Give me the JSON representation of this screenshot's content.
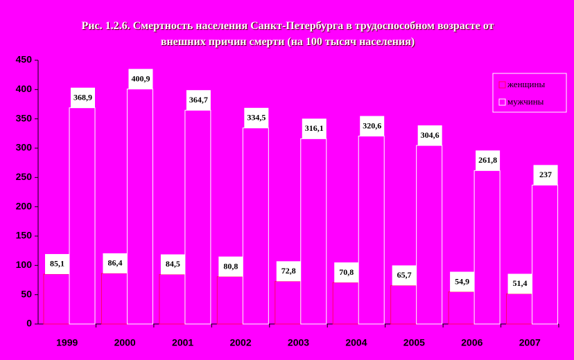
{
  "chart_data": {
    "type": "bar",
    "title": "Рис. 1.2.6. Смертность населения Санкт-Петербурга в трудоспособном возрасте от внешних причин смерти (на 100 тысяч населения)",
    "categories": [
      "1999",
      "2000",
      "2001",
      "2002",
      "2003",
      "2004",
      "2005",
      "2006",
      "2007"
    ],
    "series": [
      {
        "name": "женщины",
        "color": "#ff00ff",
        "edge": "#ff0066",
        "values": [
          85.1,
          86.4,
          84.5,
          80.8,
          72.8,
          70.8,
          65.7,
          54.9,
          51.4
        ],
        "value_labels": [
          "85,1",
          "86,4",
          "84,5",
          "80,8",
          "72,8",
          "70,8",
          "65,7",
          "54,9",
          "51,4"
        ]
      },
      {
        "name": "мужчины",
        "color": "#ff00ff",
        "edge": "#ffffff",
        "values": [
          368.9,
          400.9,
          364.7,
          334.5,
          316.1,
          320.6,
          304.6,
          261.8,
          237
        ],
        "value_labels": [
          "368,9",
          "400,9",
          "364,7",
          "334,5",
          "316,1",
          "320,6",
          "304,6",
          "261,8",
          "237"
        ]
      }
    ],
    "ylim": [
      0,
      450
    ],
    "yticks": [
      0,
      50,
      100,
      150,
      200,
      250,
      300,
      350,
      400,
      450
    ],
    "legend": "top-right"
  }
}
